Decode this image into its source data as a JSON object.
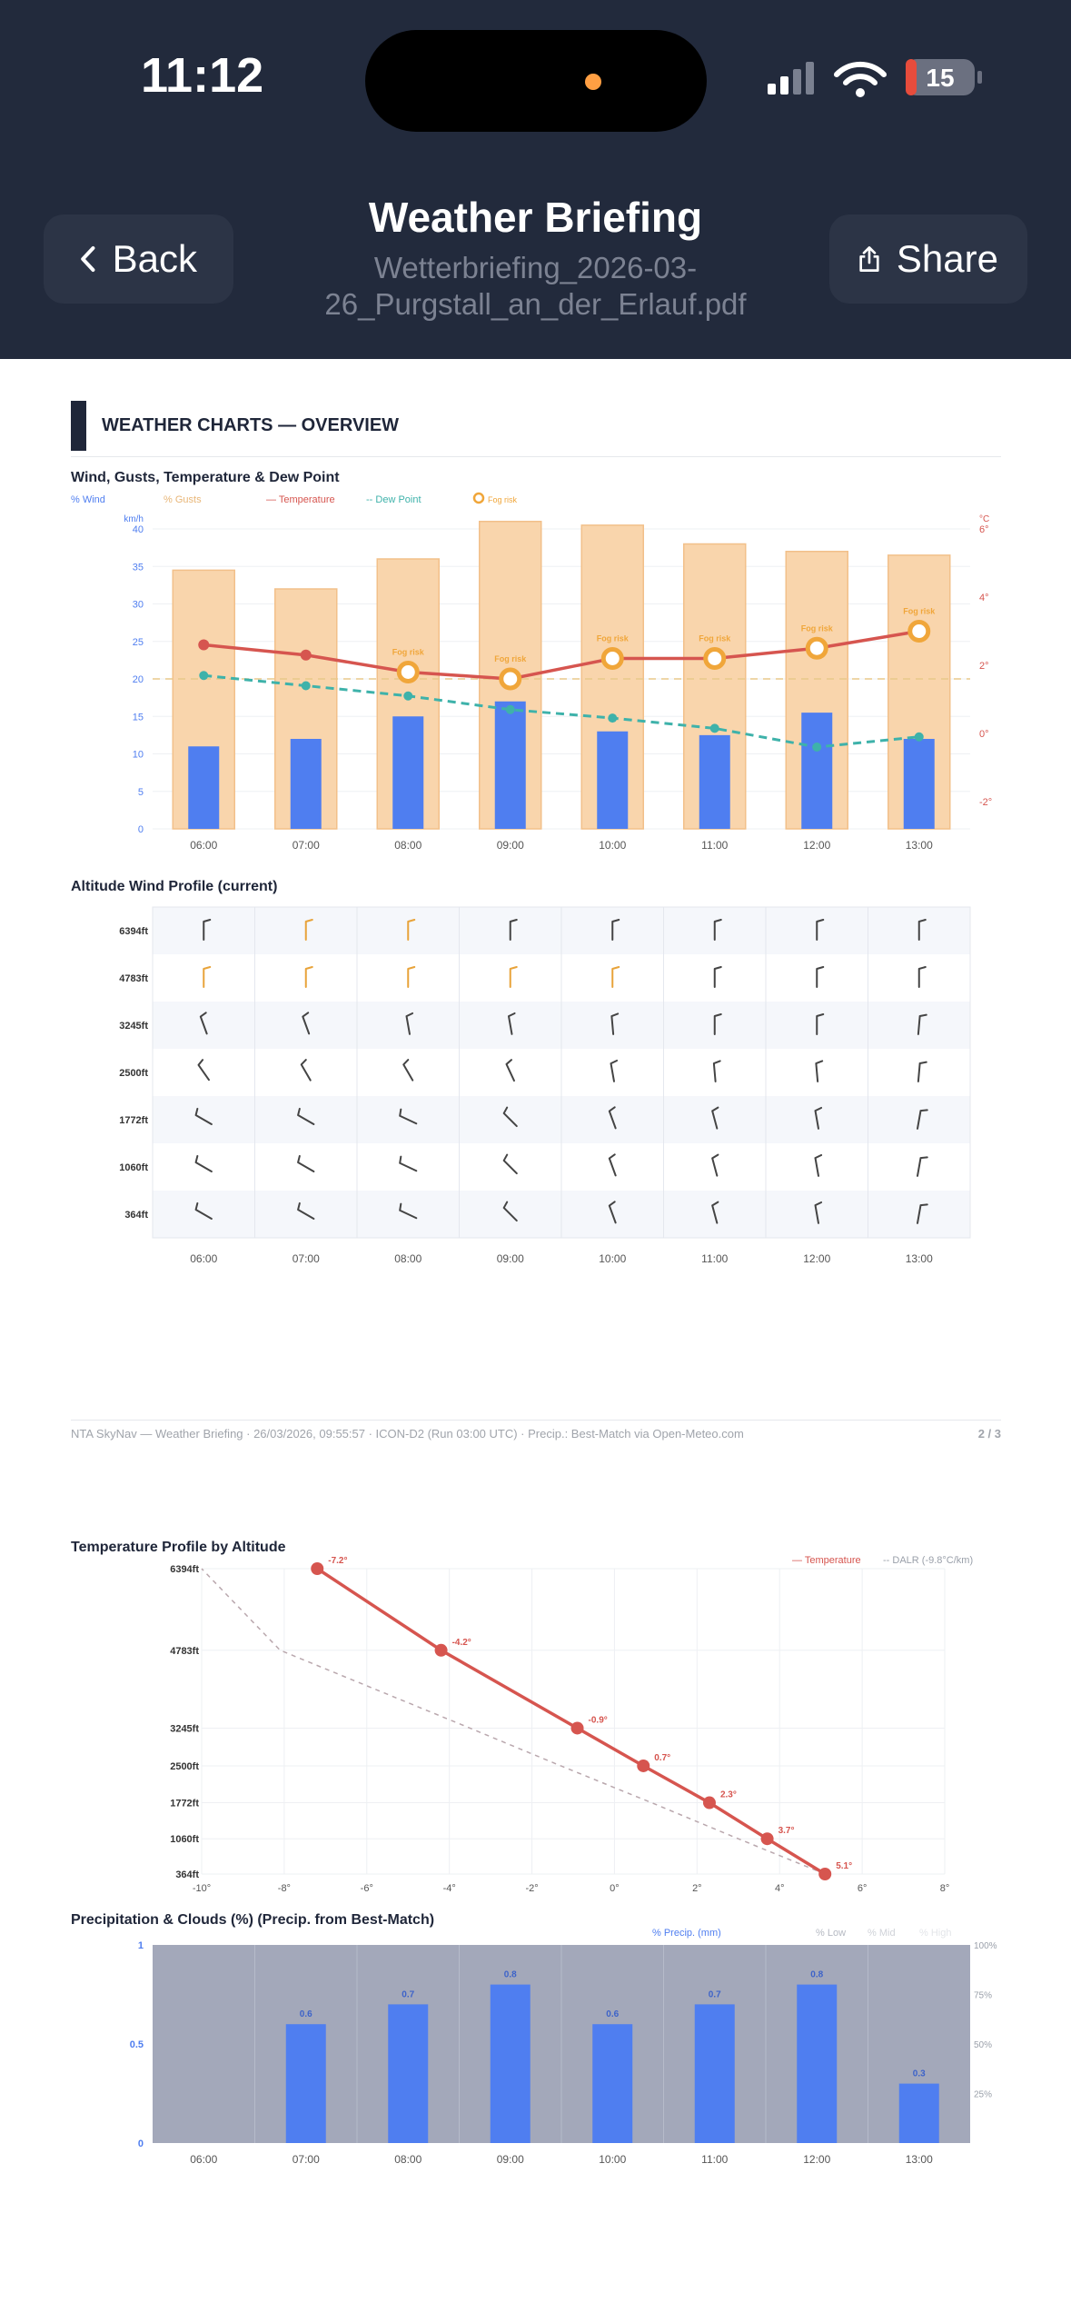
{
  "status_bar": {
    "time": "11:12",
    "battery": "15"
  },
  "nav": {
    "back_label": "Back",
    "share_label": "Share",
    "title": "Weather Briefing",
    "subtitle_line1": "Wetterbriefing_2026-03-",
    "subtitle_line2": "26_Purgstall_an_der_Erlauf.pdf"
  },
  "page1": {
    "section_title": "WEATHER CHARTS — OVERVIEW",
    "footer_left": "NTA SkyNav — Weather Briefing · 26/03/2026, 09:55:57 · ICON-D2 (Run 03:00 UTC) · Precip.: Best-Match via Open-Meteo.com",
    "footer_page": "2 / 3"
  },
  "colors": {
    "wind": "#4f7ef0",
    "gusts": "#f9d5ac",
    "temperature": "#d6554f",
    "dew_point": "#3eb2aa",
    "fog": "#f0a63a",
    "dark": "#1f2639"
  },
  "chart_data": [
    {
      "type": "bar",
      "title": "Wind, Gusts, Temperature & Dew Point",
      "categories": [
        "06:00",
        "07:00",
        "08:00",
        "09:00",
        "10:00",
        "11:00",
        "12:00",
        "13:00"
      ],
      "y_left_unit": "km/h",
      "y_right_unit": "°C",
      "y_ticks": [
        "0",
        "5",
        "10",
        "15",
        "20",
        "25",
        "30",
        "35",
        "40"
      ],
      "y_right_ticks": [
        "-2°",
        "0°",
        "2°",
        "4°",
        "6°"
      ],
      "ylim": [
        0,
        40
      ],
      "y2lim": [
        -2.8,
        6.0
      ],
      "legend": [
        "Wind",
        "Gusts",
        "Temperature",
        "Dew Point",
        "Fog risk"
      ],
      "fog_label": "Fog risk",
      "series": [
        {
          "name": "Wind",
          "values": [
            11,
            12,
            15,
            17,
            13,
            12.5,
            15.5,
            12
          ]
        },
        {
          "name": "Gusts",
          "values": [
            34.5,
            32,
            36,
            41,
            40.5,
            38,
            37,
            36.5
          ]
        },
        {
          "name": "Temperature",
          "values": [
            2.6,
            2.3,
            1.8,
            1.6,
            2.2,
            2.2,
            2.5,
            3.0
          ]
        },
        {
          "name": "Dew Point",
          "values": [
            1.7,
            1.4,
            1.1,
            0.7,
            0.45,
            0.15,
            -0.4,
            -0.1
          ]
        }
      ],
      "fog_risk": [
        false,
        false,
        true,
        true,
        true,
        true,
        true,
        true
      ],
      "threshold": 20
    },
    {
      "type": "table",
      "title": "Altitude Wind Profile (current)",
      "rows": [
        "6394ft",
        "4783ft",
        "3245ft",
        "2500ft",
        "1772ft",
        "1060ft",
        "364ft"
      ],
      "columns": [
        "06:00",
        "07:00",
        "08:00",
        "09:00",
        "10:00",
        "11:00",
        "12:00",
        "13:00"
      ],
      "barbs": [
        [
          [
            0,
            "#444"
          ],
          [
            0,
            "#e8a33a"
          ],
          [
            0,
            "#e8a33a"
          ],
          [
            0,
            "#444"
          ],
          [
            0,
            "#444"
          ],
          [
            0,
            "#444"
          ],
          [
            0,
            "#444"
          ],
          [
            0,
            "#444"
          ]
        ],
        [
          [
            0,
            "#e8a33a"
          ],
          [
            0,
            "#e8a33a"
          ],
          [
            0,
            "#e8a33a"
          ],
          [
            0,
            "#e8a33a"
          ],
          [
            0,
            "#e8a33a"
          ],
          [
            0,
            "#444"
          ],
          [
            0,
            "#444"
          ],
          [
            0,
            "#444"
          ]
        ],
        [
          [
            -20,
            "#444"
          ],
          [
            -20,
            "#444"
          ],
          [
            -10,
            "#444"
          ],
          [
            -10,
            "#444"
          ],
          [
            -5,
            "#444"
          ],
          [
            0,
            "#444"
          ],
          [
            0,
            "#444"
          ],
          [
            5,
            "#444"
          ]
        ],
        [
          [
            -35,
            "#444"
          ],
          [
            -30,
            "#444"
          ],
          [
            -30,
            "#444"
          ],
          [
            -25,
            "#444"
          ],
          [
            -10,
            "#444"
          ],
          [
            -5,
            "#444"
          ],
          [
            -5,
            "#444"
          ],
          [
            5,
            "#444"
          ]
        ],
        [
          [
            -60,
            "#444"
          ],
          [
            -60,
            "#444"
          ],
          [
            -65,
            "#444"
          ],
          [
            -45,
            "#444"
          ],
          [
            -20,
            "#444"
          ],
          [
            -15,
            "#444"
          ],
          [
            -10,
            "#444"
          ],
          [
            10,
            "#444"
          ]
        ],
        [
          [
            -60,
            "#444"
          ],
          [
            -60,
            "#444"
          ],
          [
            -65,
            "#444"
          ],
          [
            -45,
            "#444"
          ],
          [
            -20,
            "#444"
          ],
          [
            -15,
            "#444"
          ],
          [
            -10,
            "#444"
          ],
          [
            10,
            "#444"
          ]
        ],
        [
          [
            -60,
            "#444"
          ],
          [
            -60,
            "#444"
          ],
          [
            -65,
            "#444"
          ],
          [
            -45,
            "#444"
          ],
          [
            -20,
            "#444"
          ],
          [
            -15,
            "#444"
          ],
          [
            -10,
            "#444"
          ],
          [
            10,
            "#444"
          ]
        ]
      ]
    },
    {
      "type": "line",
      "title": "Temperature Profile by Altitude",
      "legend": [
        "Temperature",
        "DALR (-9.8°C/km)"
      ],
      "x_ticks": [
        "-10°",
        "-8°",
        "-6°",
        "-4°",
        "-2°",
        "0°",
        "2°",
        "4°",
        "6°",
        "8°"
      ],
      "xlim": [
        -10,
        8
      ],
      "y_levels": [
        364,
        1060,
        1772,
        2500,
        3245,
        4783,
        6394
      ],
      "y_labels": [
        "364ft",
        "1060ft",
        "1772ft",
        "2500ft",
        "3245ft",
        "4783ft",
        "6394ft"
      ],
      "temperature": [
        5.1,
        3.7,
        2.3,
        0.7,
        -0.9,
        -4.2,
        -7.2
      ],
      "temperature_labels": [
        "5.1°",
        "3.7°",
        "2.3°",
        "0.7°",
        "-0.9°",
        "-4.2°",
        "-7.2°"
      ],
      "dalr": [
        5.1,
        3.0,
        0.9,
        -1.3,
        -3.5,
        -8.1,
        -10.0
      ]
    },
    {
      "type": "bar",
      "title": "Precipitation & Clouds (%)  (Precip. from Best-Match)",
      "categories": [
        "06:00",
        "07:00",
        "08:00",
        "09:00",
        "10:00",
        "11:00",
        "12:00",
        "13:00"
      ],
      "legend": [
        "Precip. (mm)",
        "Low",
        "Mid",
        "High"
      ],
      "y_ticks": [
        "0",
        "0.5",
        "1"
      ],
      "y_right_ticks": [
        "25%",
        "50%",
        "75%",
        "100%"
      ],
      "ylim": [
        0,
        1
      ],
      "precip": [
        0,
        0.6,
        0.7,
        0.8,
        0.6,
        0.7,
        0.8,
        0.3
      ],
      "precip_labels": [
        "",
        "0.6",
        "0.7",
        "0.8",
        "0.6",
        "0.7",
        "0.8",
        "0.3"
      ],
      "low_cloud_pct": [
        100,
        100,
        100,
        100,
        100,
        100,
        100,
        100
      ]
    }
  ]
}
